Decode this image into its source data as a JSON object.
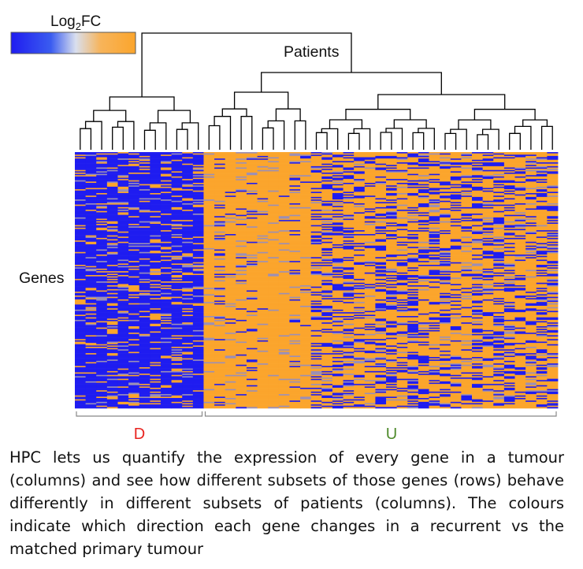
{
  "chart_data": {
    "type": "heatmap",
    "title": "",
    "xlabel": "Patients",
    "ylabel": "Genes",
    "colorbar": {
      "title_main": "Log",
      "title_sub": "2",
      "title_tail": "FC",
      "low_color": "#1f1cf0",
      "mid_color": "#d9dfee",
      "high_color": "#fba52c"
    },
    "clusters": [
      {
        "label": "D",
        "color": "#e8231f",
        "n_patients": 12,
        "dominant": "down"
      },
      {
        "label": "U",
        "color": "#4e8a2a",
        "n_patients": 33,
        "dominant": "up"
      }
    ],
    "n_genes": 200
  },
  "caption": "HPC lets us quantify the expression of every gene in a tumour (columns) and see how different subsets of those genes (rows) behave differently in different subsets of patients (columns). The colours indicate which direction each gene changes in a recurrent vs the matched primary tumour"
}
